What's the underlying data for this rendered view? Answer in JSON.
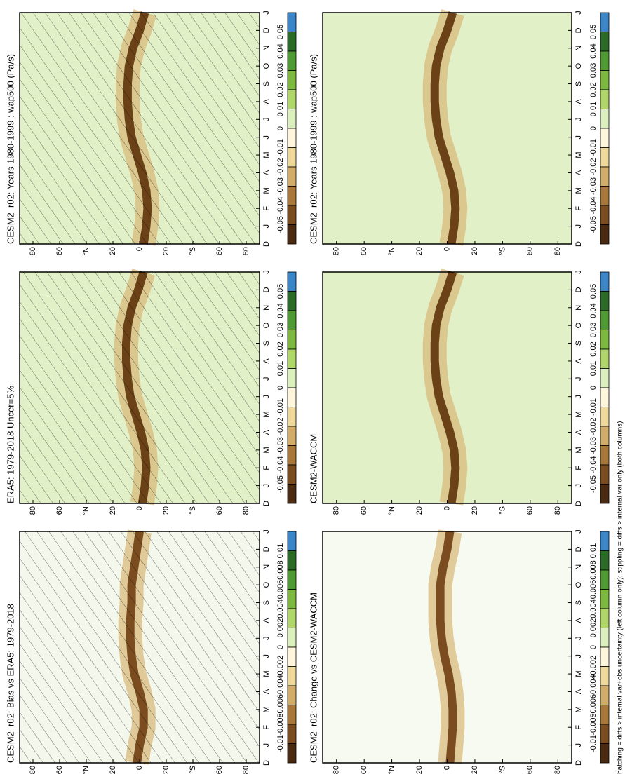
{
  "panels": [
    {
      "title": "CESM2_r02: Years 1980-1999 : wap500 (Pa/s)",
      "background": "#e2f0c8",
      "band_color": "#6b4118",
      "hatched": true,
      "ascent_lat": [
        -3,
        -5,
        -6,
        -5,
        -2,
        2,
        6,
        8,
        9,
        9,
        8,
        5,
        0,
        -4
      ],
      "levels": [
        0.05,
        0.04,
        0.03,
        0.02,
        0.01,
        0,
        -0.01,
        -0.02,
        -0.03,
        -0.04,
        -0.05
      ],
      "colors": [
        "#3a86c8",
        "#2c6b27",
        "#4f9a33",
        "#7db83f",
        "#b0d66a",
        "#dcefbe",
        "#fdf6dc",
        "#efd99a",
        "#d2ad6a",
        "#a8773a",
        "#7a4c1f",
        "#4a2a10"
      ]
    },
    {
      "title": "ERA5: 1979-2018 Uncer=5%",
      "background": "#e2f0c8",
      "band_color": "#6b4118",
      "hatched": true,
      "ascent_lat": [
        -2,
        -4,
        -5,
        -4,
        -1,
        3,
        7,
        9,
        10,
        10,
        9,
        6,
        1,
        -3
      ],
      "levels": [
        0.05,
        0.04,
        0.03,
        0.02,
        0.01,
        0,
        -0.01,
        -0.02,
        -0.03,
        -0.04,
        -0.05
      ],
      "colors": [
        "#3a86c8",
        "#2c6b27",
        "#4f9a33",
        "#7db83f",
        "#b0d66a",
        "#dcefbe",
        "#fdf6dc",
        "#efd99a",
        "#d2ad6a",
        "#a8773a",
        "#7a4c1f",
        "#4a2a10"
      ]
    },
    {
      "title": "CESM2_r02: Bias vs ERA5: 1979-2018",
      "background": "#f4f8ec",
      "band_color": "#7a4c1f",
      "hatched": true,
      "ascent_lat": [
        2,
        0,
        -3,
        -3,
        0,
        4,
        6,
        7,
        7,
        6,
        6,
        4,
        2,
        0
      ],
      "levels": [
        0.01,
        0.008,
        0.006,
        0.004,
        0.002,
        0,
        -0.002,
        -0.004,
        -0.006,
        -0.008,
        -0.01
      ],
      "colors": [
        "#3a86c8",
        "#2c6b27",
        "#4f9a33",
        "#7db83f",
        "#b0d66a",
        "#dcefbe",
        "#fdf6dc",
        "#efd99a",
        "#d2ad6a",
        "#a8773a",
        "#7a4c1f",
        "#4a2a10"
      ]
    },
    {
      "title": "CESM2_r02: Years 1980-1999 : wap500 (Pa/s)",
      "background": "#e2f0c8",
      "band_color": "#6b4118",
      "hatched": false,
      "ascent_lat": [
        -3,
        -5,
        -6,
        -5,
        -2,
        2,
        6,
        8,
        9,
        9,
        8,
        5,
        0,
        -4
      ],
      "levels": [
        0.05,
        0.04,
        0.03,
        0.02,
        0.01,
        0,
        -0.01,
        -0.02,
        -0.03,
        -0.04,
        -0.05
      ],
      "colors": [
        "#3a86c8",
        "#2c6b27",
        "#4f9a33",
        "#7db83f",
        "#b0d66a",
        "#dcefbe",
        "#fdf6dc",
        "#efd99a",
        "#d2ad6a",
        "#a8773a",
        "#7a4c1f",
        "#4a2a10"
      ]
    },
    {
      "title": "CESM2-WACCM",
      "background": "#e2f0c8",
      "band_color": "#6b4118",
      "hatched": false,
      "ascent_lat": [
        -3,
        -5,
        -6,
        -5,
        -2,
        2,
        6,
        8,
        9,
        9,
        8,
        5,
        0,
        -4
      ],
      "levels": [
        0.05,
        0.04,
        0.03,
        0.02,
        0.01,
        0,
        -0.01,
        -0.02,
        -0.03,
        -0.04,
        -0.05
      ],
      "colors": [
        "#3a86c8",
        "#2c6b27",
        "#4f9a33",
        "#7db83f",
        "#b0d66a",
        "#dcefbe",
        "#fdf6dc",
        "#efd99a",
        "#d2ad6a",
        "#a8773a",
        "#7a4c1f",
        "#4a2a10"
      ]
    },
    {
      "title": "CESM2_r02: Change vs CESM2-WACCM",
      "background": "#f7faf0",
      "band_color": "#7a4c1f",
      "hatched": false,
      "ascent_lat": [
        -2,
        -3,
        -4,
        -4,
        -3,
        -1,
        2,
        4,
        5,
        5,
        5,
        3,
        0,
        -2
      ],
      "levels": [
        0.01,
        0.008,
        0.006,
        0.004,
        0.002,
        0,
        -0.002,
        -0.004,
        -0.006,
        -0.008,
        -0.01
      ],
      "colors": [
        "#3a86c8",
        "#2c6b27",
        "#4f9a33",
        "#7db83f",
        "#b0d66a",
        "#dcefbe",
        "#fdf6dc",
        "#efd99a",
        "#d2ad6a",
        "#a8773a",
        "#7a4c1f",
        "#4a2a10"
      ]
    }
  ],
  "months": [
    "D",
    "J",
    "F",
    "M",
    "A",
    "M",
    "J",
    "J",
    "A",
    "S",
    "O",
    "N",
    "D",
    "J"
  ],
  "lat_lim": [
    90,
    -90
  ],
  "lat_ticks": [
    80,
    60,
    {
      "value": 40,
      "label": "°N"
    },
    20,
    0,
    {
      "value": -20,
      "label": "20"
    },
    {
      "value": -40,
      "label": "°S"
    },
    {
      "value": -60,
      "label": "60"
    },
    {
      "value": -80,
      "label": "80"
    }
  ],
  "footer": "hatching = diffs > internal var+obs uncertainty (left column only); stippling = diffs > internal var only (both columns)"
}
